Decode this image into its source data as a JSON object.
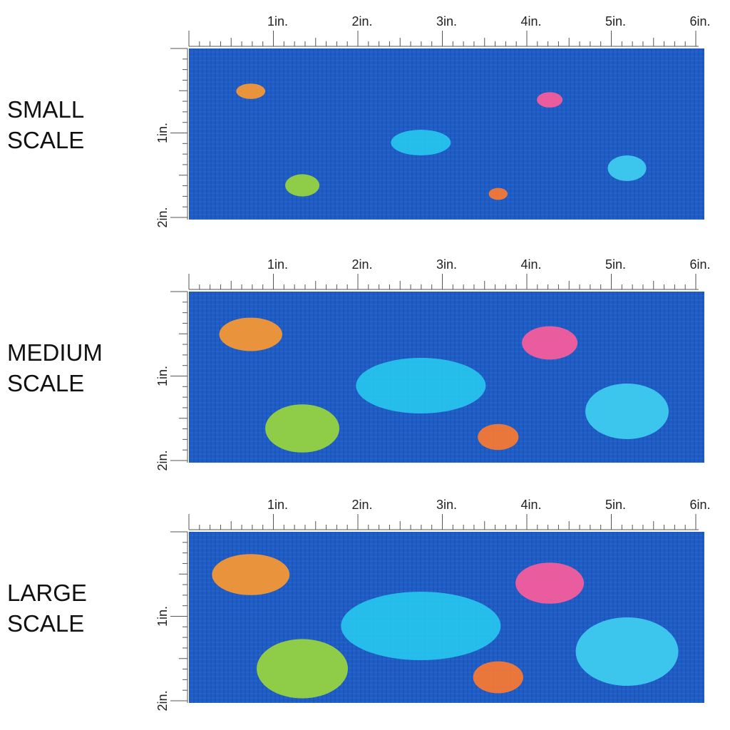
{
  "panels": [
    {
      "label": [
        "SMALL",
        "SCALE"
      ]
    },
    {
      "label": [
        "MEDIUM",
        "SCALE"
      ]
    },
    {
      "label": [
        "LARGE",
        "SCALE"
      ]
    }
  ],
  "ruler": {
    "x_labels": [
      "1in.",
      "2in.",
      "3in.",
      "4in.",
      "5in.",
      "6in."
    ],
    "y_labels": [
      "1in.",
      "2in."
    ]
  }
}
